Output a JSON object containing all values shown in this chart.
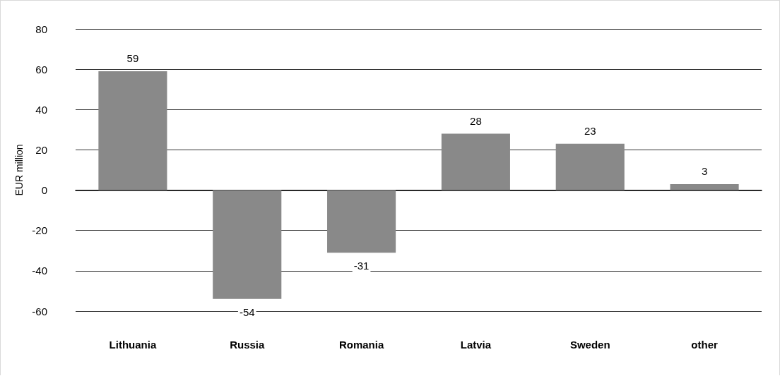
{
  "chart_data": {
    "type": "bar",
    "ylabel": "EUR million",
    "categories": [
      "Lithuania",
      "Russia",
      "Romania",
      "Latvia",
      "Sweden",
      "other"
    ],
    "values": [
      59,
      -54,
      -31,
      28,
      23,
      3
    ],
    "color": "#898989",
    "ylim": [
      -60,
      80
    ],
    "yticks": [
      -60,
      -40,
      -20,
      0,
      20,
      40,
      60,
      80
    ],
    "grid": "y",
    "data_labels": true
  }
}
